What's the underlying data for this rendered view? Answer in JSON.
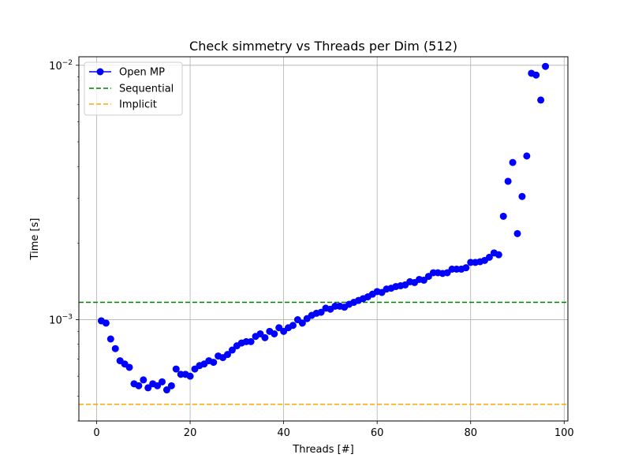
{
  "chart_data": {
    "type": "scatter",
    "title": "Check simmetry vs Threads per Dim (512)",
    "xlabel": "Threads [#]",
    "ylabel": "Time [s]",
    "xlim": [
      -3.8,
      100.8
    ],
    "ylim": [
      0.0004,
      0.0108
    ],
    "yscale": "log",
    "grid": true,
    "legend_position": "top-left",
    "x_ticks": [
      0,
      20,
      40,
      60,
      80,
      100
    ],
    "y_ticks": [
      {
        "value": 0.001,
        "label": "10",
        "exp": "−3"
      },
      {
        "value": 0.01,
        "label": "10",
        "exp": "−2"
      }
    ],
    "series": [
      {
        "name": "Open MP",
        "color": "#0000ff",
        "style": "markers",
        "x": [
          1,
          2,
          3,
          4,
          5,
          6,
          7,
          8,
          9,
          10,
          11,
          12,
          13,
          14,
          15,
          16,
          17,
          18,
          19,
          20,
          21,
          22,
          23,
          24,
          25,
          26,
          27,
          28,
          29,
          30,
          31,
          32,
          33,
          34,
          35,
          36,
          37,
          38,
          39,
          40,
          41,
          42,
          43,
          44,
          45,
          46,
          47,
          48,
          49,
          50,
          51,
          52,
          53,
          54,
          55,
          56,
          57,
          58,
          59,
          60,
          61,
          62,
          63,
          64,
          65,
          66,
          67,
          68,
          69,
          70,
          71,
          72,
          73,
          74,
          75,
          76,
          77,
          78,
          79,
          80,
          81,
          82,
          83,
          84,
          85,
          86,
          87,
          88,
          89,
          90,
          91,
          92,
          93,
          94,
          95,
          96
        ],
        "y": [
          0.00099,
          0.00097,
          0.00084,
          0.00077,
          0.00069,
          0.00067,
          0.00065,
          0.00056,
          0.00055,
          0.00058,
          0.00054,
          0.00056,
          0.00055,
          0.00057,
          0.00053,
          0.00055,
          0.00064,
          0.00061,
          0.00061,
          0.0006,
          0.00064,
          0.00066,
          0.00067,
          0.00069,
          0.00068,
          0.00072,
          0.00071,
          0.00073,
          0.00076,
          0.00079,
          0.00081,
          0.00082,
          0.00082,
          0.00086,
          0.00088,
          0.00085,
          0.0009,
          0.00088,
          0.00093,
          0.0009,
          0.00093,
          0.00095,
          0.001,
          0.00097,
          0.00101,
          0.00104,
          0.00106,
          0.00107,
          0.00111,
          0.0011,
          0.00113,
          0.00113,
          0.00112,
          0.00115,
          0.00117,
          0.00119,
          0.00121,
          0.00123,
          0.00126,
          0.00129,
          0.00128,
          0.00132,
          0.00133,
          0.00135,
          0.00136,
          0.00137,
          0.00141,
          0.0014,
          0.00144,
          0.00143,
          0.00148,
          0.00153,
          0.00153,
          0.00152,
          0.00153,
          0.00158,
          0.00158,
          0.00158,
          0.0016,
          0.00168,
          0.00168,
          0.00169,
          0.00171,
          0.00176,
          0.00183,
          0.0018,
          0.00255,
          0.0035,
          0.00415,
          0.00218,
          0.00305,
          0.0044,
          0.0093,
          0.00915,
          0.0073,
          0.0099
        ]
      },
      {
        "name": "Sequential",
        "color": "#008000",
        "style": "dashed",
        "value": 0.00117
      },
      {
        "name": "Implicit",
        "color": "#ffa500",
        "style": "dashed",
        "value": 0.000465
      }
    ]
  }
}
